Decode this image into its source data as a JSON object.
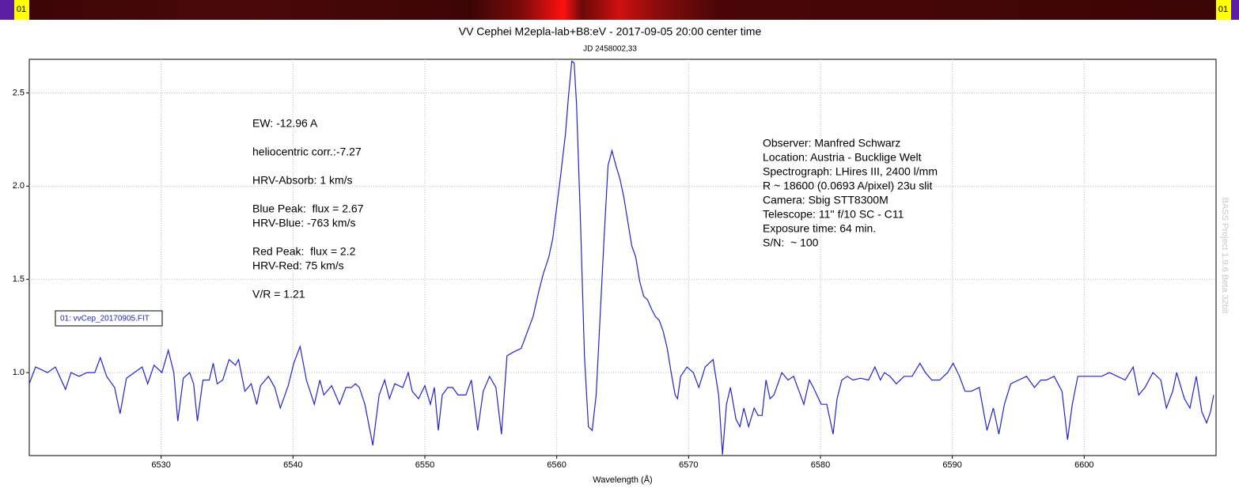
{
  "header": {
    "strip_labels": [
      "01",
      "01"
    ],
    "watermark": "BASS Project 1.9.6 Beta 32bit"
  },
  "chart_data": {
    "type": "line",
    "title": "VV Cephei M2epla-lab+B8:eV - 2017-09-05 20:00 center time",
    "subtitle": "JD 2458002,33",
    "x_label": "Wavelength (Å)",
    "xlim": [
      6520,
      6610
    ],
    "ylim": [
      0.555,
      2.68
    ],
    "xticks": [
      6530,
      6540,
      6550,
      6560,
      6570,
      6580,
      6590,
      6600
    ],
    "yticks": [
      {
        "value": 1.0,
        "label": "1.0"
      },
      {
        "value": 1.5,
        "label": "1.5"
      },
      {
        "value": 2.0,
        "label": "2.0"
      },
      {
        "value": 2.5,
        "label": "2.5"
      }
    ],
    "grid": true,
    "annotations_left": [
      "EW: -12.96 A",
      "heliocentric corr.:-7.27",
      "HRV-Absorb: 1 km/s",
      "Blue Peak:  flux = 2.67",
      "HRV-Blue: -763 km/s",
      "Red Peak:  flux = 2.2",
      "HRV-Red: 75 km/s",
      "V/R = 1.21"
    ],
    "annotations_right": [
      "Observer: Manfred Schwarz",
      "Location: Austria - Bucklige Welt",
      "Spectrograph: LHires III, 2400 l/mm",
      "R ~ 18600 (0.0693 A/pixel) 23u slit",
      "Camera: Sbig STT8300M",
      "Telescope: 11'' f/10 SC - C11",
      "Exposure time: 64 min.",
      "S/N:  ~ 100"
    ],
    "x": [
      6520.0,
      6520.48,
      6521.38,
      6521.98,
      6522.75,
      6523.17,
      6523.77,
      6524.37,
      6524.97,
      6525.39,
      6525.87,
      6526.47,
      6526.89,
      6527.37,
      6527.96,
      6528.56,
      6528.98,
      6529.46,
      6530.06,
      6530.54,
      6530.96,
      6531.26,
      6531.68,
      6532.16,
      6532.46,
      6532.75,
      6533.17,
      6533.65,
      6533.95,
      6534.25,
      6534.67,
      6535.15,
      6535.63,
      6535.87,
      6536.35,
      6536.83,
      6537.25,
      6537.54,
      6538.14,
      6538.62,
      6539.04,
      6539.64,
      6540.06,
      6540.54,
      6541.02,
      6541.62,
      6542.04,
      6542.34,
      6542.93,
      6543.53,
      6544.01,
      6544.43,
      6544.73,
      6545.03,
      6545.45,
      6546.05,
      6546.53,
      6546.95,
      6547.31,
      6547.72,
      6548.32,
      6548.74,
      6549.04,
      6549.52,
      6550.0,
      6550.42,
      6550.72,
      6551.02,
      6551.32,
      6551.74,
      6552.1,
      6552.51,
      6553.11,
      6553.53,
      6554.01,
      6554.43,
      6554.91,
      6555.39,
      6555.81,
      6556.23,
      6556.71,
      6557.31,
      6557.78,
      6558.2,
      6558.62,
      6558.98,
      6559.4,
      6559.7,
      6560.0,
      6560.3,
      6560.66,
      6560.9,
      6561.14,
      6561.32,
      6561.5,
      6561.8,
      6562.1,
      6562.4,
      6562.69,
      6562.99,
      6563.29,
      6563.59,
      6563.89,
      6564.19,
      6564.49,
      6564.79,
      6565.09,
      6565.39,
      6565.69,
      6565.99,
      6566.29,
      6566.59,
      6566.89,
      6567.19,
      6567.49,
      6567.78,
      6568.08,
      6568.38,
      6568.68,
      6568.98,
      6569.16,
      6569.4,
      6569.88,
      6570.36,
      6570.78,
      6571.26,
      6571.86,
      6572.28,
      6572.57,
      6572.87,
      6573.17,
      6573.59,
      6573.89,
      6574.19,
      6574.55,
      6574.97,
      6575.27,
      6575.57,
      6575.87,
      6576.17,
      6576.47,
      6577.07,
      6577.54,
      6577.96,
      6578.38,
      6578.74,
      6579.16,
      6579.46,
      6580.06,
      6580.48,
      6580.96,
      6581.26,
      6581.62,
      6582.04,
      6582.46,
      6583.05,
      6583.65,
      6584.13,
      6584.55,
      6584.85,
      6585.27,
      6585.75,
      6586.35,
      6586.95,
      6587.54,
      6587.96,
      6588.44,
      6589.04,
      6589.64,
      6590.06,
      6590.54,
      6590.96,
      6591.44,
      6592.04,
      6592.63,
      6593.11,
      6593.53,
      6593.95,
      6594.43,
      6595.03,
      6595.63,
      6596.23,
      6596.71,
      6597.13,
      6597.72,
      6598.32,
      6598.74,
      6599.1,
      6599.52,
      6600.12,
      6600.72,
      6601.32,
      6601.92,
      6602.51,
      6603.11,
      6603.71,
      6604.13,
      6604.61,
      6605.21,
      6605.81,
      6606.23,
      6606.71,
      6607.01,
      6607.6,
      6608.02,
      6608.5,
      6608.92,
      6609.28,
      6609.58,
      6609.82
    ],
    "series": [
      {
        "name": "01: vvCep_20170905.FIT",
        "color": "#2424c8",
        "values": [
          0.94,
          1.03,
          1.0,
          1.03,
          0.91,
          1.0,
          0.98,
          1.0,
          1.0,
          1.08,
          0.98,
          0.92,
          0.78,
          0.97,
          1.0,
          1.03,
          0.94,
          1.04,
          1.0,
          1.12,
          1.0,
          0.74,
          0.97,
          1.0,
          0.94,
          0.74,
          0.96,
          0.96,
          1.05,
          0.94,
          0.96,
          1.07,
          1.04,
          1.07,
          0.9,
          0.94,
          0.83,
          0.93,
          0.98,
          0.92,
          0.81,
          0.93,
          1.05,
          1.14,
          0.96,
          0.83,
          0.96,
          0.88,
          0.93,
          0.83,
          0.92,
          0.92,
          0.94,
          0.92,
          0.83,
          0.61,
          0.88,
          0.96,
          0.86,
          0.94,
          0.92,
          1.0,
          0.9,
          0.86,
          0.93,
          0.83,
          0.92,
          0.69,
          0.88,
          0.92,
          0.92,
          0.88,
          0.88,
          0.96,
          0.69,
          0.9,
          0.98,
          0.92,
          0.67,
          1.09,
          1.11,
          1.13,
          1.22,
          1.3,
          1.43,
          1.53,
          1.62,
          1.72,
          1.89,
          2.06,
          2.28,
          2.49,
          2.67,
          2.66,
          2.44,
          1.81,
          1.09,
          0.71,
          0.69,
          0.88,
          1.3,
          1.72,
          2.11,
          2.19,
          2.11,
          2.04,
          1.94,
          1.81,
          1.68,
          1.62,
          1.49,
          1.41,
          1.39,
          1.34,
          1.3,
          1.28,
          1.22,
          1.13,
          1.0,
          0.88,
          0.86,
          0.98,
          1.03,
          1.0,
          0.92,
          1.03,
          1.07,
          0.88,
          0.56,
          0.83,
          0.92,
          0.75,
          0.71,
          0.81,
          0.71,
          0.81,
          0.77,
          0.77,
          0.96,
          0.86,
          0.88,
          1.0,
          0.96,
          0.98,
          0.9,
          0.83,
          0.96,
          0.92,
          0.83,
          0.83,
          0.67,
          0.86,
          0.96,
          0.98,
          0.96,
          0.97,
          0.96,
          1.03,
          0.96,
          1.0,
          0.98,
          0.94,
          0.98,
          0.98,
          1.05,
          1.0,
          0.96,
          0.96,
          1.0,
          1.05,
          0.98,
          0.9,
          0.9,
          0.92,
          0.69,
          0.81,
          0.67,
          0.83,
          0.94,
          0.96,
          0.98,
          0.92,
          0.96,
          0.96,
          0.98,
          0.9,
          0.64,
          0.83,
          0.98,
          0.98,
          0.98,
          0.98,
          1.0,
          0.98,
          0.96,
          1.03,
          0.88,
          0.92,
          1.0,
          0.96,
          0.81,
          0.9,
          1.0,
          0.86,
          0.81,
          0.98,
          0.79,
          0.73,
          0.79,
          0.88
        ]
      }
    ]
  }
}
